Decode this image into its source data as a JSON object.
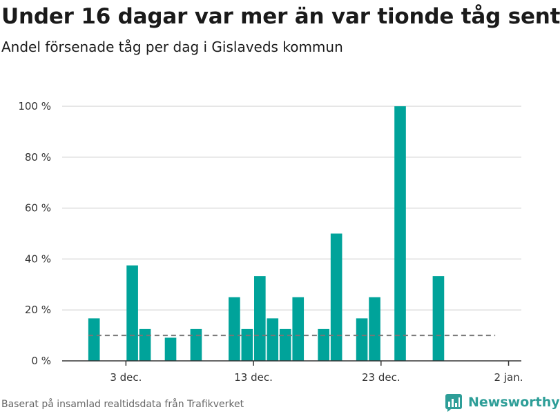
{
  "title": "Under 16 dagar var mer än var tionde tåg sent",
  "subtitle": "Andel försenade tåg per dag i Gislaveds kommun",
  "source": "Baserat på insamlad realtidsdata från Trafikverket",
  "brand": {
    "name": "Newsworthy",
    "icon": "newsworthy-logo-icon",
    "color": "#2e9e98"
  },
  "colors": {
    "bar": "#00a39a",
    "grid": "#dddddd",
    "axis": "#333333",
    "reference": "#777777"
  },
  "chart_data": {
    "type": "bar",
    "x_axis": {
      "type": "date",
      "min": "2023-11-28",
      "max": "2024-01-03",
      "ticks": [
        {
          "date": "2023-12-03",
          "label": "3 dec."
        },
        {
          "date": "2023-12-13",
          "label": "13 dec."
        },
        {
          "date": "2023-12-23",
          "label": "23 dec."
        },
        {
          "date": "2024-01-02",
          "label": "2 jan."
        }
      ]
    },
    "y_axis": {
      "min": 0,
      "max": 100,
      "unit": "%",
      "ticks": [
        {
          "value": 0,
          "label": "0 %"
        },
        {
          "value": 20,
          "label": "20 %"
        },
        {
          "value": 40,
          "label": "40 %"
        },
        {
          "value": 60,
          "label": "60 %"
        },
        {
          "value": 80,
          "label": "80 %"
        },
        {
          "value": 100,
          "label": "100 %"
        }
      ]
    },
    "grid": true,
    "reference_line": {
      "value": 10,
      "style": "dashed",
      "from": "2023-11-30",
      "to": "2023-12-31"
    },
    "points": [
      {
        "date": "2023-11-30",
        "value": 16.7
      },
      {
        "date": "2023-12-03",
        "value": 37.5
      },
      {
        "date": "2023-12-04",
        "value": 12.5
      },
      {
        "date": "2023-12-06",
        "value": 9.1
      },
      {
        "date": "2023-12-08",
        "value": 12.5
      },
      {
        "date": "2023-12-11",
        "value": 25
      },
      {
        "date": "2023-12-12",
        "value": 12.5
      },
      {
        "date": "2023-12-13",
        "value": 33.3
      },
      {
        "date": "2023-12-14",
        "value": 16.7
      },
      {
        "date": "2023-12-15",
        "value": 12.5
      },
      {
        "date": "2023-12-16",
        "value": 25
      },
      {
        "date": "2023-12-18",
        "value": 12.5
      },
      {
        "date": "2023-12-19",
        "value": 50
      },
      {
        "date": "2023-12-21",
        "value": 16.7
      },
      {
        "date": "2023-12-22",
        "value": 25
      },
      {
        "date": "2023-12-24",
        "value": 100
      },
      {
        "date": "2023-12-27",
        "value": 33.3
      }
    ]
  }
}
